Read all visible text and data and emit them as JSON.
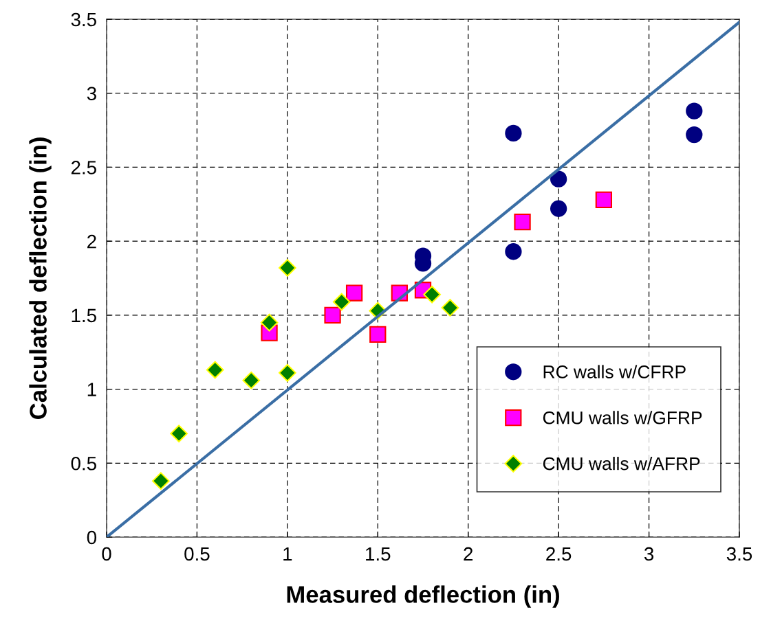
{
  "chart_data": {
    "type": "scatter",
    "xlabel": "Measured deflection (in)",
    "ylabel": "Calculated deflection (in)",
    "xlim": [
      0,
      3.5
    ],
    "ylim": [
      0,
      3.5
    ],
    "xticks": [
      0,
      0.5,
      1,
      1.5,
      2,
      2.5,
      3,
      3.5
    ],
    "yticks": [
      0,
      0.5,
      1,
      1.5,
      2,
      2.5,
      3,
      3.5
    ],
    "grid": true,
    "legend": "bottom right",
    "series": [
      {
        "name": "RC walls w/CFRP",
        "color": "#000080",
        "marker": "circle",
        "x": [
          1.75,
          1.75,
          2.25,
          2.25,
          2.5,
          2.5,
          3.25,
          3.25
        ],
        "values": [
          1.9,
          1.85,
          2.73,
          1.93,
          2.42,
          2.22,
          2.88,
          2.72
        ]
      },
      {
        "name": "CMU walls w/GFRP",
        "color": "#ff00ff",
        "marker": "square",
        "x": [
          0.9,
          1.25,
          1.37,
          1.5,
          1.62,
          1.75,
          2.3,
          2.75
        ],
        "values": [
          1.38,
          1.5,
          1.65,
          1.37,
          1.65,
          1.67,
          2.13,
          2.28
        ]
      },
      {
        "name": "CMU walls w/AFRP",
        "color": "#008000",
        "marker": "diamond",
        "x": [
          0.3,
          0.4,
          0.6,
          0.8,
          0.9,
          1.0,
          1.0,
          1.3,
          1.5,
          1.8,
          1.9
        ],
        "values": [
          0.38,
          0.7,
          1.13,
          1.06,
          1.45,
          1.11,
          1.82,
          1.59,
          1.53,
          1.64,
          1.55
        ]
      },
      {
        "type": "line",
        "color": "#3a6ea5",
        "marker": "none",
        "line_style": "solid",
        "x": [
          0,
          3.5
        ],
        "values": [
          0,
          3.48
        ]
      }
    ]
  }
}
